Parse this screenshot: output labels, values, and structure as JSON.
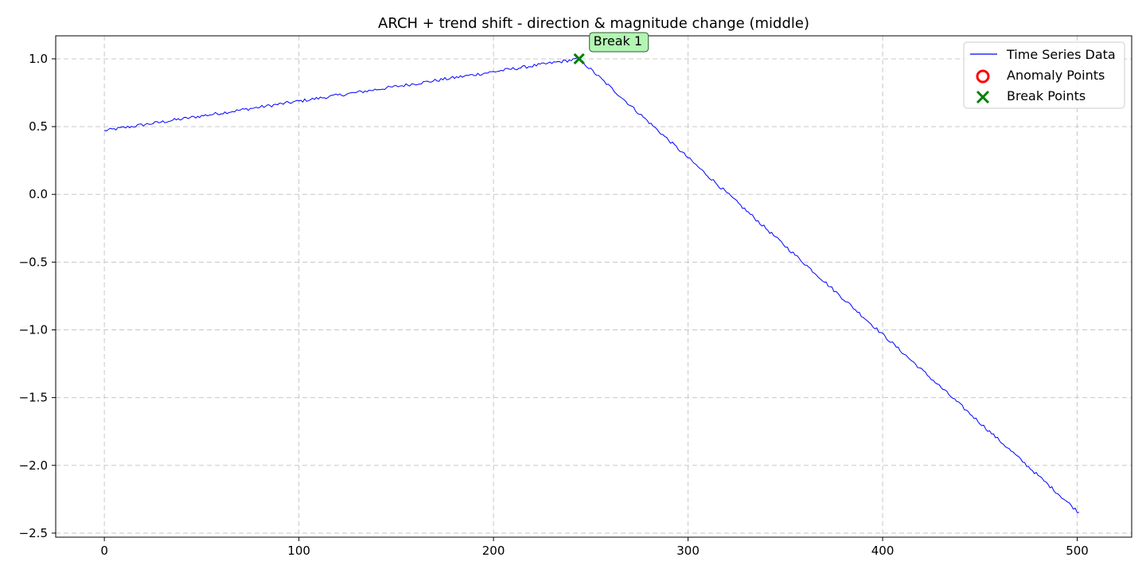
{
  "chart_data": {
    "type": "line",
    "title": "ARCH + trend shift - direction & magnitude change (middle)",
    "xlabel": "",
    "ylabel": "",
    "xlim": [
      -25,
      528
    ],
    "ylim": [
      -2.53,
      1.17
    ],
    "x_ticks": [
      0,
      100,
      200,
      300,
      400,
      500
    ],
    "x_tick_labels": [
      "0",
      "100",
      "200",
      "300",
      "400",
      "500"
    ],
    "y_ticks": [
      1.0,
      0.5,
      0.0,
      -0.5,
      -1.0,
      -1.5,
      -2.0,
      -2.5
    ],
    "y_tick_labels": [
      "1.0",
      "0.5",
      "0.0",
      "−0.5",
      "−1.0",
      "−1.5",
      "−2.0",
      "−2.5"
    ],
    "grid": true,
    "legend_position": "top-right",
    "series": [
      {
        "name": "Time Series Data",
        "color": "#0000ff",
        "n_points": 502,
        "segments": [
          {
            "x_start": 0,
            "y_start": 0.47,
            "x_end": 244,
            "y_end": 1.0
          },
          {
            "x_start": 244,
            "y_start": 1.0,
            "x_end": 501,
            "y_end": -2.35
          }
        ],
        "noise_amplitude": 0.012
      }
    ],
    "anomaly_points": {
      "name": "Anomaly Points",
      "color": "#ff0000",
      "points": []
    },
    "break_points": {
      "name": "Break Points",
      "color": "#008000",
      "points": [
        {
          "x": 244,
          "y": 1.0,
          "label": "Break 1"
        }
      ]
    },
    "legend": [
      "Time Series Data",
      "Anomaly Points",
      "Break Points"
    ],
    "annotation_bg": "#b3f5b3"
  }
}
